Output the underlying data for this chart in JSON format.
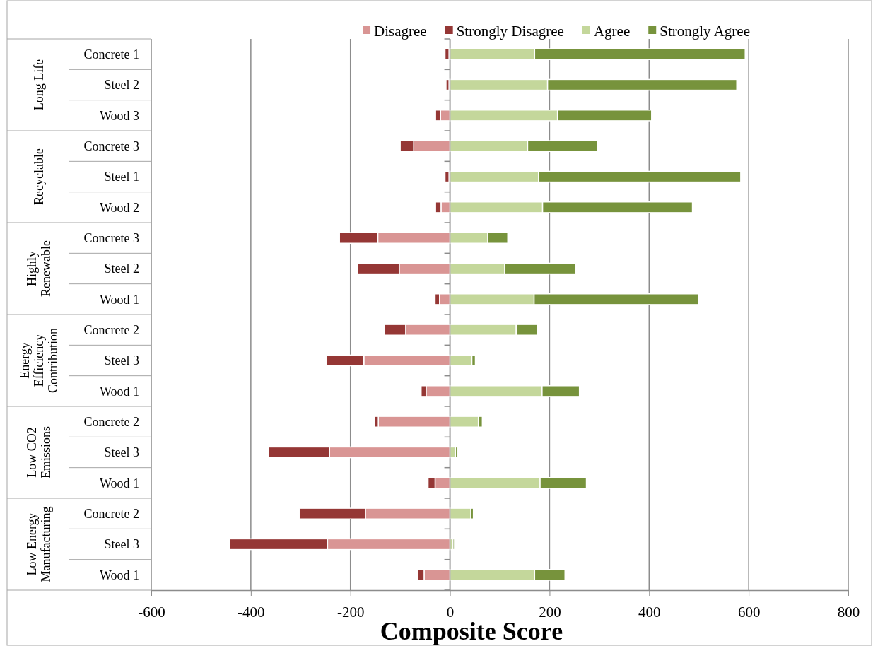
{
  "chart_data": {
    "type": "bar",
    "orientation": "horizontal",
    "stacked": true,
    "xlabel": "Composite Score",
    "categories": [
      "Concrete 1",
      "Steel 2",
      "Wood 3",
      "Concrete 3",
      "Steel 1",
      "Wood 2",
      "Concrete 3",
      "Steel 2",
      "Wood 1",
      "Concrete 2",
      "Steel 3",
      "Wood 1",
      "Concrete 2",
      "Steel 3",
      "Wood 1",
      "Concrete 2",
      "Steel 3",
      "Wood 1"
    ],
    "annotations": [
      "Long Life",
      "Recyclable",
      "Highly Renewable",
      "Energy Efficiency Contribution",
      "Low CO2 Emissions",
      "Low Energy Manufacturing"
    ],
    "series": [
      {
        "name": "Disagree",
        "color": "#d99594",
        "values": [
          -2,
          -2,
          -19,
          -73,
          -2,
          -18,
          -145,
          -102,
          -21,
          -89,
          -173,
          -48,
          -144,
          -242,
          -30,
          -170,
          -246,
          -52
        ]
      },
      {
        "name": "Strongly Disagree",
        "color": "#953735",
        "values": [
          -8,
          -6,
          -10,
          -27,
          -8,
          -11,
          -77,
          -84,
          -9,
          -43,
          -75,
          -10,
          -7,
          -122,
          -14,
          -132,
          -197,
          -13
        ]
      },
      {
        "name": "Agree",
        "color": "#c4d79b",
        "values": [
          170,
          196,
          216,
          156,
          178,
          186,
          76,
          110,
          169,
          133,
          44,
          185,
          57,
          11,
          181,
          42,
          6,
          170
        ]
      },
      {
        "name": "Strongly Agree",
        "color": "#77933c",
        "values": [
          423,
          380,
          189,
          141,
          406,
          301,
          40,
          142,
          330,
          43,
          7,
          75,
          8,
          4,
          93,
          5,
          3,
          61
        ]
      }
    ],
    "xlim": [
      -600,
      800
    ],
    "xticks": [
      -600,
      -400,
      -200,
      0,
      200,
      400,
      600,
      800
    ],
    "grid": "x",
    "legend": "top"
  }
}
